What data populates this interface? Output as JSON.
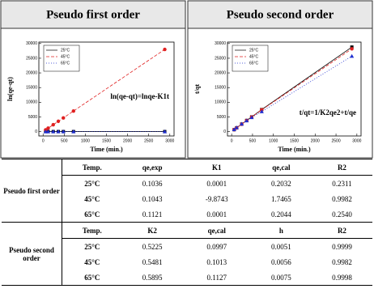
{
  "chart_data": [
    {
      "type": "scatter",
      "title": "Pseudo first order",
      "xlabel": "Time (min.)",
      "ylabel": "ln(qe-qt)",
      "annotation": "ln(qe-qt)=lnqe-K1t",
      "legend": "upper left",
      "x": [
        60,
        120,
        240,
        360,
        480,
        720,
        2880
      ],
      "series": [
        {
          "name": "25°C",
          "color": "#000000",
          "marker": "square",
          "line": "solid",
          "values": [
            0,
            0,
            0,
            0,
            0,
            0,
            0
          ]
        },
        {
          "name": "45°C",
          "color": "#e02020",
          "marker": "circle",
          "line": "dashed",
          "values": [
            580,
            1160,
            2330,
            3500,
            4660,
            7000,
            28000
          ]
        },
        {
          "name": "65°C",
          "color": "#1f2fd0",
          "marker": "triangle",
          "line": "dotted",
          "values": [
            0,
            0,
            0,
            0,
            0,
            0,
            0
          ]
        }
      ],
      "xlim": [
        -100,
        3100
      ],
      "xticks": [
        0,
        500,
        1000,
        1500,
        2000,
        2500,
        3000
      ],
      "ylim": [
        -1500,
        30500
      ],
      "yticks": [
        0,
        5000,
        10000,
        15000,
        20000,
        25000,
        30000
      ]
    },
    {
      "type": "scatter",
      "title": "Pseudo second order",
      "xlabel": "Time (min.)",
      "ylabel": "t/qt",
      "annotation": "t/qt=1/K2qe2+t/qe",
      "legend": "upper left",
      "x": [
        60,
        120,
        240,
        360,
        480,
        720,
        2880
      ],
      "series": [
        {
          "name": "25°C",
          "color": "#000000",
          "marker": "square",
          "line": "solid",
          "values": [
            650,
            1300,
            2550,
            3800,
            5000,
            7500,
            28800
          ]
        },
        {
          "name": "45°C",
          "color": "#e02020",
          "marker": "circle",
          "line": "dashed",
          "values": [
            640,
            1250,
            2500,
            3750,
            4950,
            7400,
            28200
          ]
        },
        {
          "name": "65°C",
          "color": "#1f2fd0",
          "marker": "triangle",
          "line": "dotted",
          "values": [
            700,
            1350,
            2600,
            3700,
            4800,
            6800,
            25700
          ]
        }
      ],
      "xlim": [
        -100,
        3100
      ],
      "xticks": [
        0,
        500,
        1000,
        1500,
        2000,
        2500,
        3000
      ],
      "ylim": [
        -1500,
        30500
      ],
      "yticks": [
        0,
        5000,
        10000,
        15000,
        20000,
        25000,
        30000
      ]
    }
  ],
  "table": {
    "sections": [
      {
        "label": "Pseudo first order",
        "header": [
          "Temp.",
          "qe,exp",
          "K1",
          "qe,cal",
          "R2"
        ],
        "rows": [
          [
            "25°C",
            "0.1036",
            "0.0001",
            "0.2032",
            "0.2311"
          ],
          [
            "45°C",
            "0.1043",
            "-9.8743",
            "1.7465",
            "0.9982"
          ],
          [
            "65°C",
            "0.1121",
            "0.0001",
            "0.2044",
            "0.2540"
          ]
        ]
      },
      {
        "label": "Pseudo second order",
        "header": [
          "Temp.",
          "K2",
          "qe,cal",
          "h",
          "R2"
        ],
        "rows": [
          [
            "25°C",
            "0.5225",
            "0.0997",
            "0.0051",
            "0.9999"
          ],
          [
            "45°C",
            "0.5481",
            "0.1013",
            "0.0056",
            "0.9982"
          ],
          [
            "65°C",
            "0.5895",
            "0.1127",
            "0.0075",
            "0.9998"
          ]
        ]
      }
    ]
  }
}
